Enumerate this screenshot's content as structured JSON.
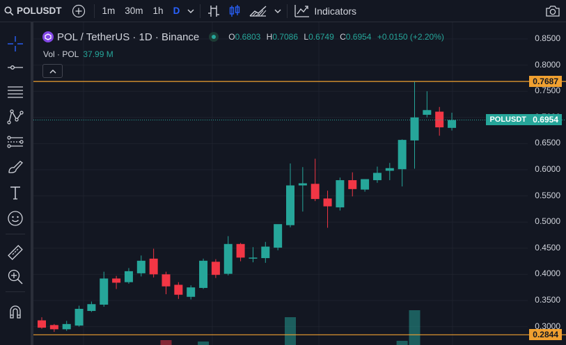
{
  "toolbar": {
    "symbol": "POLUSDT",
    "timeframes": [
      "1m",
      "30m",
      "1h",
      "D"
    ],
    "active_timeframe": "D",
    "indicators_label": "Indicators"
  },
  "legend": {
    "title": "POL / TetherUS · 1D · Binance",
    "o_label": "O",
    "o": "0.6803",
    "h_label": "H",
    "h": "0.7086",
    "l_label": "L",
    "l": "0.6749",
    "c_label": "C",
    "c": "0.6954",
    "change": "+0.0150 (+2.20%)",
    "vol_label": "Vol · POL",
    "vol_value": "37.99 M"
  },
  "price_axis": [
    "0.8500",
    "0.8000",
    "0.7500",
    "0.7000",
    "0.6500",
    "0.6000",
    "0.5500",
    "0.5000",
    "0.4500",
    "0.4000",
    "0.3500",
    "0.3000"
  ],
  "tags": {
    "upper_line": "0.7687",
    "symbol_tag": "POLUSDT",
    "last_price": "0.6954",
    "lower_line": "0.2844"
  },
  "colors": {
    "up": "#26a69a",
    "down": "#f23645",
    "hline": "#f0a030",
    "bg": "#131722"
  },
  "chart_data": {
    "type": "candlestick",
    "ylim": [
      0.28,
      0.87
    ],
    "hlines": [
      0.7687,
      0.2844
    ],
    "candles": [
      {
        "o": 0.312,
        "h": 0.318,
        "l": 0.296,
        "c": 0.298
      },
      {
        "o": 0.303,
        "h": 0.305,
        "l": 0.29,
        "c": 0.295
      },
      {
        "o": 0.295,
        "h": 0.311,
        "l": 0.292,
        "c": 0.305
      },
      {
        "o": 0.302,
        "h": 0.34,
        "l": 0.3,
        "c": 0.334
      },
      {
        "o": 0.33,
        "h": 0.348,
        "l": 0.328,
        "c": 0.343
      },
      {
        "o": 0.342,
        "h": 0.405,
        "l": 0.338,
        "c": 0.392
      },
      {
        "o": 0.392,
        "h": 0.397,
        "l": 0.372,
        "c": 0.384
      },
      {
        "o": 0.385,
        "h": 0.412,
        "l": 0.382,
        "c": 0.406
      },
      {
        "o": 0.402,
        "h": 0.436,
        "l": 0.396,
        "c": 0.426
      },
      {
        "o": 0.43,
        "h": 0.449,
        "l": 0.394,
        "c": 0.4
      },
      {
        "o": 0.4,
        "h": 0.405,
        "l": 0.362,
        "c": 0.377
      },
      {
        "o": 0.38,
        "h": 0.385,
        "l": 0.353,
        "c": 0.361
      },
      {
        "o": 0.357,
        "h": 0.379,
        "l": 0.352,
        "c": 0.375
      },
      {
        "o": 0.374,
        "h": 0.43,
        "l": 0.372,
        "c": 0.426
      },
      {
        "o": 0.424,
        "h": 0.429,
        "l": 0.393,
        "c": 0.399
      },
      {
        "o": 0.401,
        "h": 0.473,
        "l": 0.398,
        "c": 0.458
      },
      {
        "o": 0.458,
        "h": 0.46,
        "l": 0.425,
        "c": 0.432
      },
      {
        "o": 0.432,
        "h": 0.452,
        "l": 0.423,
        "c": 0.432
      },
      {
        "o": 0.431,
        "h": 0.462,
        "l": 0.422,
        "c": 0.453
      },
      {
        "o": 0.451,
        "h": 0.495,
        "l": 0.446,
        "c": 0.496
      },
      {
        "o": 0.494,
        "h": 0.612,
        "l": 0.49,
        "c": 0.57
      },
      {
        "o": 0.57,
        "h": 0.605,
        "l": 0.52,
        "c": 0.574
      },
      {
        "o": 0.573,
        "h": 0.621,
        "l": 0.54,
        "c": 0.544
      },
      {
        "o": 0.545,
        "h": 0.56,
        "l": 0.489,
        "c": 0.53
      },
      {
        "o": 0.528,
        "h": 0.585,
        "l": 0.522,
        "c": 0.58
      },
      {
        "o": 0.58,
        "h": 0.595,
        "l": 0.549,
        "c": 0.563
      },
      {
        "o": 0.562,
        "h": 0.582,
        "l": 0.558,
        "c": 0.582
      },
      {
        "o": 0.58,
        "h": 0.606,
        "l": 0.575,
        "c": 0.594
      },
      {
        "o": 0.598,
        "h": 0.613,
        "l": 0.58,
        "c": 0.603
      },
      {
        "o": 0.601,
        "h": 0.658,
        "l": 0.568,
        "c": 0.657
      },
      {
        "o": 0.656,
        "h": 0.768,
        "l": 0.602,
        "c": 0.7
      },
      {
        "o": 0.705,
        "h": 0.75,
        "l": 0.7,
        "c": 0.714
      },
      {
        "o": 0.711,
        "h": 0.72,
        "l": 0.665,
        "c": 0.681
      },
      {
        "o": 0.68,
        "h": 0.709,
        "l": 0.675,
        "c": 0.695
      }
    ],
    "volume_visible": [
      {
        "index": 10,
        "dir": "down"
      },
      {
        "index": 13,
        "dir": "up"
      },
      {
        "index": 20,
        "dir": "up"
      },
      {
        "index": 29,
        "dir": "up"
      },
      {
        "index": 30,
        "dir": "up"
      }
    ]
  }
}
